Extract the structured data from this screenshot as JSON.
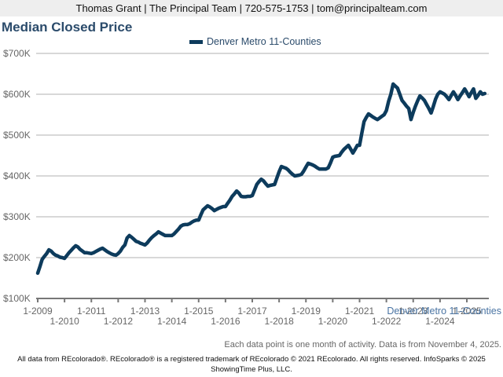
{
  "header": {
    "contact_line": "Thomas Grant | The Principal Team | 720-575-1753 | tom@principalteam.com"
  },
  "series_caption": "Denver Metro 11-Counties",
  "note": "Each data point is one month of activity. Data is from November 4, 2025.",
  "footer": {
    "line1": "All data from REcolorado®. REcolorado® is a registered trademark of REcolorado © 2021 REcolorado. All rights reserved. InfoSparks © 2025",
    "line2": "ShowingTime Plus, LLC."
  },
  "colors": {
    "series": "#0d3b5c",
    "title": "#2b4b6b",
    "grid": "#b0b0b0",
    "caption": "#4a74a3"
  },
  "chart_data": {
    "type": "line",
    "title": "Median Closed Price",
    "xlabel": "",
    "ylabel": "",
    "ylim": [
      100000,
      700000
    ],
    "yticks": [
      100000,
      200000,
      300000,
      400000,
      500000,
      600000,
      700000
    ],
    "ytick_labels": [
      "$100K",
      "$200K",
      "$300K",
      "$400K",
      "$500K",
      "$600K",
      "$700K"
    ],
    "xlim": [
      2009.0,
      2025.75
    ],
    "xticks": [
      2009,
      2010,
      2011,
      2012,
      2013,
      2014,
      2015,
      2016,
      2017,
      2018,
      2019,
      2020,
      2021,
      2022,
      2023,
      2024,
      2025
    ],
    "xtick_labels": [
      "1-2009",
      "1-2010",
      "1-2011",
      "1-2012",
      "1-2013",
      "1-2014",
      "1-2015",
      "1-2016",
      "1-2017",
      "1-2018",
      "1-2019",
      "1-2020",
      "1-2021",
      "1-2022",
      "1-2023",
      "1-2024",
      "1-2025"
    ],
    "grid": true,
    "legend": "top-center",
    "series": [
      {
        "name": "Denver Metro 11-Counties",
        "start": "2009-01",
        "values": [
          162000,
          178000,
          196000,
          203000,
          210000,
          219000,
          216000,
          210000,
          206000,
          204000,
          201000,
          200000,
          198000,
          205000,
          212000,
          218000,
          224000,
          229000,
          226000,
          220000,
          216000,
          212000,
          212000,
          211000,
          210000,
          212000,
          215000,
          218000,
          221000,
          223000,
          219000,
          215000,
          212000,
          209000,
          207000,
          206000,
          210000,
          216000,
          225000,
          231000,
          248000,
          254000,
          250000,
          245000,
          240000,
          238000,
          235000,
          233000,
          231000,
          236000,
          243000,
          249000,
          254000,
          258000,
          263000,
          260000,
          257000,
          254000,
          254000,
          254000,
          254000,
          258000,
          264000,
          270000,
          277000,
          280000,
          281000,
          281000,
          283000,
          287000,
          290000,
          292000,
          292000,
          305000,
          317000,
          322000,
          327000,
          324000,
          320000,
          315000,
          318000,
          321000,
          323000,
          325000,
          325000,
          333000,
          341000,
          350000,
          356000,
          363000,
          358000,
          350000,
          349000,
          349000,
          350000,
          350000,
          352000,
          365000,
          379000,
          386000,
          392000,
          388000,
          381000,
          375000,
          377000,
          378000,
          379000,
          395000,
          410000,
          423000,
          421000,
          419000,
          415000,
          409000,
          404000,
          400000,
          401000,
          402000,
          404000,
          412000,
          422000,
          431000,
          429000,
          427000,
          424000,
          420000,
          417000,
          417000,
          417000,
          417000,
          420000,
          432000,
          446000,
          448000,
          449000,
          450000,
          458000,
          465000,
          470000,
          475000,
          466000,
          456000,
          465000,
          475000,
          475000,
          504000,
          533000,
          543000,
          552000,
          548000,
          544000,
          541000,
          538000,
          542000,
          546000,
          550000,
          560000,
          583000,
          600000,
          625000,
          620000,
          615000,
          600000,
          585000,
          578000,
          571000,
          565000,
          538000,
          556000,
          571000,
          584000,
          596000,
          591000,
          585000,
          575000,
          565000,
          554000,
          570000,
          588000,
          600000,
          606000,
          603000,
          600000,
          594000,
          587000,
          597000,
          606000,
          597000,
          587000,
          596000,
          604000,
          613000,
          604000,
          594000,
          604000,
          613000,
          590000,
          597000,
          606000,
          600000,
          602000
        ]
      }
    ]
  }
}
